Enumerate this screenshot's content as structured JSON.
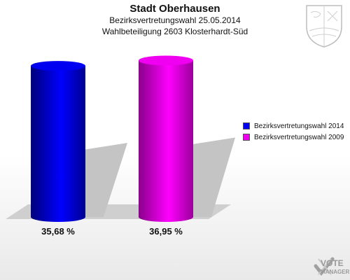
{
  "header": {
    "title": "Stadt Oberhausen",
    "subtitle1": "Bezirksvertretungswahl 25.05.2014",
    "subtitle2": "Wahlbeteiligung 2603 Klosterhardt-Süd"
  },
  "chart_data": {
    "type": "bar",
    "categories": [
      "Bezirksvertretungswahl 2014",
      "Bezirksvertretungswahl 2009"
    ],
    "values": [
      35.68,
      36.95
    ],
    "value_labels": [
      "35,68 %",
      "36,95 %"
    ],
    "colors": [
      "#0000f0",
      "#f000f0"
    ],
    "ylim": [
      0,
      40
    ],
    "legend_position": "right",
    "legend": [
      {
        "label": "Bezirksvertretungswahl 2014",
        "color": "#0000f0"
      },
      {
        "label": "Bezirksvertretungswahl 2009",
        "color": "#f000f0"
      }
    ]
  },
  "logo": {
    "line1": "VOTE",
    "line2": "MANAGER"
  }
}
